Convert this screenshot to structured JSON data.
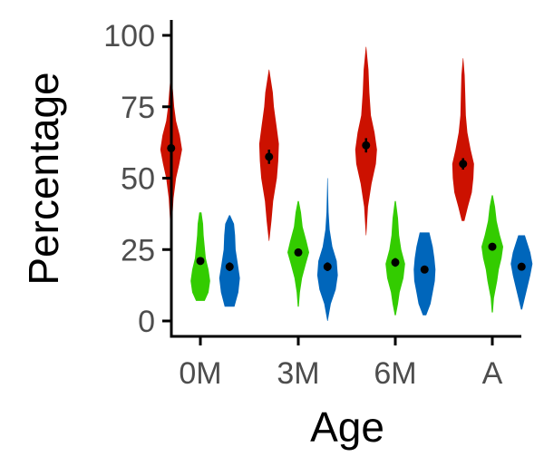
{
  "chart_data": {
    "type": "violin",
    "xlabel": "Age",
    "ylabel": "Percentage",
    "ylim": [
      0,
      100
    ],
    "yticks": [
      0,
      25,
      50,
      75,
      100
    ],
    "categories": [
      "0M",
      "3M",
      "6M",
      "A"
    ],
    "grid": false,
    "legend": "none",
    "series": [
      {
        "color": "#cc1100",
        "groups": [
          {
            "category": "0M",
            "min": 27,
            "max": 87,
            "mean": 60.5,
            "se": 2.5,
            "density": [
              [
                27,
                0.02
              ],
              [
                35,
                0.1
              ],
              [
                43,
                0.22
              ],
              [
                50,
                0.45
              ],
              [
                55,
                0.75
              ],
              [
                60,
                1.0
              ],
              [
                65,
                0.8
              ],
              [
                70,
                0.45
              ],
              [
                75,
                0.28
              ],
              [
                80,
                0.18
              ],
              [
                87,
                0.02
              ]
            ]
          },
          {
            "category": "3M",
            "min": 28,
            "max": 88,
            "mean": 57.5,
            "se": 2.5,
            "density": [
              [
                28,
                0.02
              ],
              [
                35,
                0.22
              ],
              [
                42,
                0.38
              ],
              [
                50,
                0.72
              ],
              [
                56,
                0.85
              ],
              [
                62,
                0.9
              ],
              [
                68,
                0.7
              ],
              [
                75,
                0.45
              ],
              [
                80,
                0.35
              ],
              [
                88,
                0.02
              ]
            ]
          },
          {
            "category": "6M",
            "min": 30,
            "max": 96,
            "mean": 61.5,
            "se": 2.5,
            "density": [
              [
                30,
                0.02
              ],
              [
                40,
                0.18
              ],
              [
                48,
                0.5
              ],
              [
                55,
                0.9
              ],
              [
                60,
                1.0
              ],
              [
                66,
                0.78
              ],
              [
                72,
                0.45
              ],
              [
                80,
                0.3
              ],
              [
                88,
                0.22
              ],
              [
                96,
                0.02
              ]
            ]
          },
          {
            "category": "A",
            "min": 35,
            "max": 92,
            "mean": 55,
            "se": 2,
            "density": [
              [
                35,
                0.12
              ],
              [
                40,
                0.45
              ],
              [
                45,
                0.8
              ],
              [
                50,
                0.95
              ],
              [
                55,
                1.0
              ],
              [
                60,
                0.7
              ],
              [
                66,
                0.4
              ],
              [
                72,
                0.25
              ],
              [
                80,
                0.2
              ],
              [
                86,
                0.15
              ],
              [
                92,
                0.02
              ]
            ]
          }
        ]
      },
      {
        "color": "#33cc00",
        "groups": [
          {
            "category": "0M",
            "min": 7,
            "max": 38,
            "mean": 21,
            "se": 1.2,
            "density": [
              [
                7,
                0.4
              ],
              [
                10,
                0.75
              ],
              [
                14,
                0.9
              ],
              [
                18,
                0.75
              ],
              [
                22,
                0.5
              ],
              [
                26,
                0.4
              ],
              [
                30,
                0.3
              ],
              [
                34,
                0.25
              ],
              [
                38,
                0.1
              ]
            ]
          },
          {
            "category": "3M",
            "min": 5,
            "max": 42,
            "mean": 24,
            "se": 1.2,
            "density": [
              [
                5,
                0.05
              ],
              [
                10,
                0.15
              ],
              [
                15,
                0.35
              ],
              [
                20,
                0.7
              ],
              [
                24,
                1.0
              ],
              [
                28,
                0.75
              ],
              [
                33,
                0.4
              ],
              [
                38,
                0.25
              ],
              [
                42,
                0.05
              ]
            ]
          },
          {
            "category": "6M",
            "min": 2,
            "max": 42,
            "mean": 20.5,
            "se": 1.5,
            "density": [
              [
                2,
                0.05
              ],
              [
                6,
                0.25
              ],
              [
                10,
                0.4
              ],
              [
                15,
                0.75
              ],
              [
                20,
                0.9
              ],
              [
                25,
                0.55
              ],
              [
                30,
                0.35
              ],
              [
                36,
                0.25
              ],
              [
                42,
                0.05
              ]
            ]
          },
          {
            "category": "A",
            "min": 3,
            "max": 44,
            "mean": 26,
            "se": 1,
            "density": [
              [
                3,
                0.05
              ],
              [
                8,
                0.15
              ],
              [
                14,
                0.45
              ],
              [
                18,
                0.6
              ],
              [
                22,
                0.85
              ],
              [
                26,
                1.0
              ],
              [
                30,
                0.7
              ],
              [
                35,
                0.4
              ],
              [
                40,
                0.25
              ],
              [
                44,
                0.05
              ]
            ]
          }
        ]
      },
      {
        "color": "#0066bb",
        "groups": [
          {
            "category": "0M",
            "min": 5,
            "max": 37,
            "mean": 19,
            "se": 1.5,
            "density": [
              [
                5,
                0.45
              ],
              [
                10,
                0.8
              ],
              [
                15,
                0.95
              ],
              [
                20,
                0.75
              ],
              [
                25,
                0.55
              ],
              [
                30,
                0.5
              ],
              [
                34,
                0.4
              ],
              [
                37,
                0.05
              ]
            ]
          },
          {
            "category": "3M",
            "min": 0,
            "max": 50,
            "mean": 19,
            "se": 1.5,
            "density": [
              [
                0,
                0.02
              ],
              [
                6,
                0.3
              ],
              [
                11,
                0.75
              ],
              [
                16,
                0.95
              ],
              [
                21,
                0.85
              ],
              [
                26,
                0.45
              ],
              [
                32,
                0.2
              ],
              [
                38,
                0.1
              ],
              [
                44,
                0.05
              ],
              [
                50,
                0.02
              ]
            ]
          },
          {
            "category": "6M",
            "min": 2,
            "max": 31,
            "mean": 18,
            "se": 1,
            "density": [
              [
                2,
                0.15
              ],
              [
                6,
                0.55
              ],
              [
                10,
                0.75
              ],
              [
                14,
                0.95
              ],
              [
                18,
                1.0
              ],
              [
                22,
                0.9
              ],
              [
                26,
                0.75
              ],
              [
                31,
                0.45
              ]
            ]
          },
          {
            "category": "A",
            "min": 4,
            "max": 30,
            "mean": 19,
            "se": 0.8,
            "density": [
              [
                4,
                0.05
              ],
              [
                8,
                0.3
              ],
              [
                12,
                0.55
              ],
              [
                16,
                0.8
              ],
              [
                20,
                1.0
              ],
              [
                24,
                0.8
              ],
              [
                27,
                0.55
              ],
              [
                30,
                0.3
              ]
            ]
          }
        ]
      }
    ]
  }
}
